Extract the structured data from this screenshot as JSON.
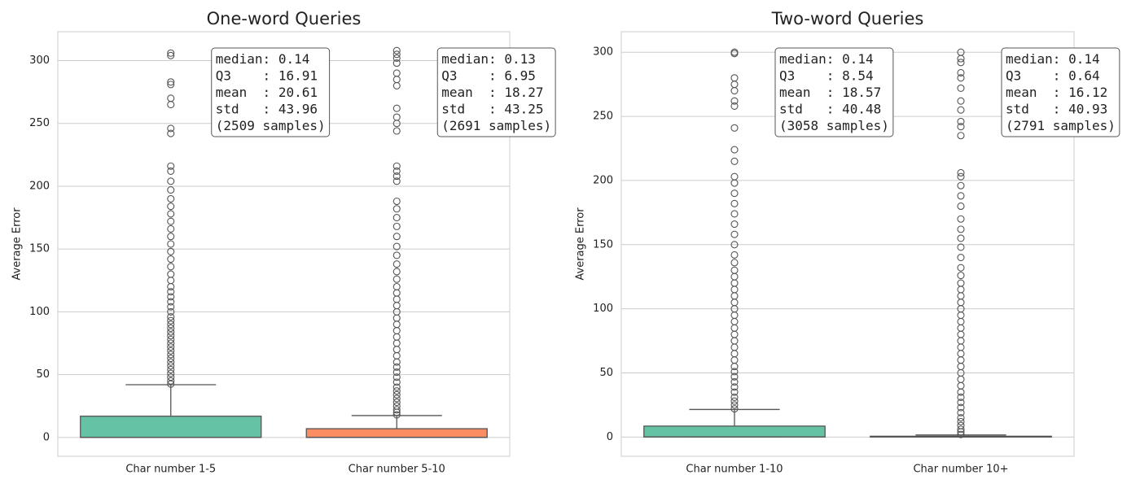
{
  "chart_data": [
    {
      "type": "box",
      "title": "One-word Queries",
      "ylabel": "Average Error",
      "categories": [
        "Char number 1-5",
        "Char number 5-10"
      ],
      "ylim": [
        -15,
        323
      ],
      "yticks": [
        0,
        50,
        100,
        150,
        200,
        250,
        300
      ],
      "grid": true,
      "boxes": [
        {
          "color": "#66c2a5",
          "q1": 0,
          "median": 0.14,
          "q3": 16.91,
          "whislo": 0,
          "whishi": 42,
          "fliers": [
            42.5,
            45,
            48,
            51,
            54,
            57,
            60,
            63,
            66,
            69,
            72,
            75,
            78,
            81,
            84,
            87,
            90,
            93,
            96,
            100,
            104,
            108,
            112,
            116,
            120,
            125,
            130,
            136,
            142,
            148,
            154,
            160,
            166,
            172,
            178,
            184,
            190,
            197,
            204,
            212,
            216,
            242,
            246,
            265,
            270,
            281,
            283,
            304,
            306
          ]
        },
        {
          "color": "#fc8d62",
          "q1": 0,
          "median": 0.13,
          "q3": 6.95,
          "whislo": 0,
          "whishi": 17.4,
          "fliers": [
            18,
            20,
            22,
            25,
            28,
            31,
            34,
            37,
            40,
            44,
            48,
            52,
            56,
            60,
            65,
            70,
            75,
            80,
            85,
            90,
            95,
            100,
            105,
            110,
            115,
            120,
            126,
            132,
            138,
            145,
            152,
            160,
            168,
            175,
            182,
            188,
            204,
            208,
            212,
            216,
            244,
            250,
            255,
            262,
            280,
            285,
            290,
            298,
            302,
            305,
            308
          ]
        }
      ],
      "annotations": [
        [
          "median: 0.14",
          "Q3    : 16.91",
          "mean  : 20.61",
          "std   : 43.96",
          "(2509 samples)"
        ],
        [
          "median: 0.13",
          "Q3    : 6.95",
          "mean  : 18.27",
          "std   : 43.25",
          "(2691 samples)"
        ]
      ]
    },
    {
      "type": "box",
      "title": "Two-word Queries",
      "ylabel": "Average Error",
      "categories": [
        "Char number 1-10",
        "Char number 10+"
      ],
      "ylim": [
        -15,
        316
      ],
      "yticks": [
        0,
        50,
        100,
        150,
        200,
        250,
        300
      ],
      "grid": true,
      "boxes": [
        {
          "color": "#66c2a5",
          "q1": 0,
          "median": 0.14,
          "q3": 8.54,
          "whislo": 0,
          "whishi": 21.5,
          "fliers": [
            22,
            25,
            28,
            31,
            35,
            39,
            43,
            47,
            51,
            55,
            60,
            65,
            70,
            75,
            80,
            85,
            90,
            95,
            100,
            105,
            110,
            115,
            120,
            125,
            130,
            136,
            142,
            150,
            158,
            166,
            174,
            182,
            190,
            198,
            203,
            215,
            224,
            241,
            258,
            262,
            270,
            275,
            280,
            299,
            300
          ]
        },
        {
          "color": "#fc8d62",
          "q1": 0,
          "median": 0.14,
          "q3": 0.64,
          "whislo": 0,
          "whishi": 1.6,
          "fliers": [
            2,
            4,
            6,
            9,
            12,
            15,
            19,
            23,
            27,
            31,
            35,
            40,
            45,
            50,
            55,
            60,
            65,
            70,
            75,
            80,
            85,
            90,
            95,
            100,
            105,
            110,
            115,
            120,
            126,
            132,
            140,
            148,
            155,
            162,
            170,
            180,
            188,
            196,
            203,
            206,
            235,
            242,
            246,
            255,
            262,
            272,
            280,
            284,
            292,
            295,
            300
          ]
        }
      ],
      "annotations": [
        [
          "median: 0.14",
          "Q3    : 8.54",
          "mean  : 18.57",
          "std   : 40.48",
          "(3058 samples)"
        ],
        [
          "median: 0.14",
          "Q3    : 0.64",
          "mean  : 16.12",
          "std   : 40.93",
          "(2791 samples)"
        ]
      ]
    }
  ]
}
